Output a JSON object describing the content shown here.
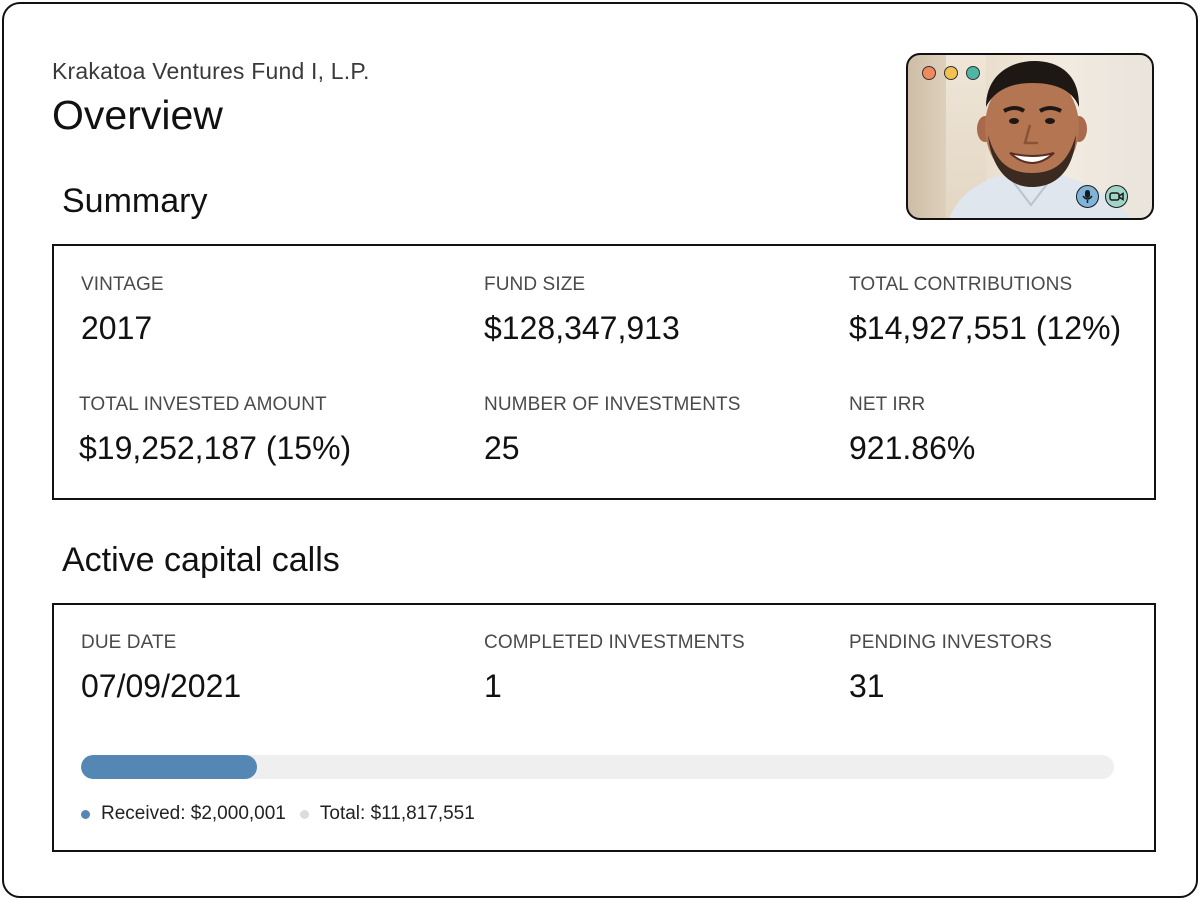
{
  "header": {
    "fund_name": "Krakatoa Ventures Fund I, L.P.",
    "page_title": "Overview"
  },
  "summary": {
    "title": "Summary",
    "stats": [
      {
        "label": "VINTAGE",
        "value": "2017"
      },
      {
        "label": "FUND SIZE",
        "value": "$128,347,913"
      },
      {
        "label": "TOTAL CONTRIBUTIONS",
        "value": "$14,927,551 (12%)"
      },
      {
        "label": "TOTAL INVESTED AMOUNT",
        "value": "$19,252,187 (15%)"
      },
      {
        "label": "NUMBER OF INVESTMENTS",
        "value": "25"
      },
      {
        "label": "NET IRR",
        "value": "921.86%"
      }
    ]
  },
  "capital_calls": {
    "title": "Active capital calls",
    "stats": [
      {
        "label": "DUE DATE",
        "value": "07/09/2021"
      },
      {
        "label": "COMPLETED INVESTMENTS",
        "value": "1"
      },
      {
        "label": "PENDING INVESTORS",
        "value": "31"
      }
    ],
    "progress": {
      "fraction": 0.17,
      "received_label": "Received: $2,000,001",
      "total_label": "Total: $11,817,551"
    }
  },
  "video_call": {
    "window_dots": [
      "#f08a5d",
      "#f2c14e",
      "#4fb6a6"
    ],
    "controls": [
      "microphone-icon",
      "camera-icon"
    ]
  },
  "colors": {
    "progress_fill": "#5487b3",
    "progress_track": "#efefef",
    "received_dot": "#5487b3",
    "total_dot": "#dcdcdc",
    "control_bg": "#7fb3d9"
  }
}
